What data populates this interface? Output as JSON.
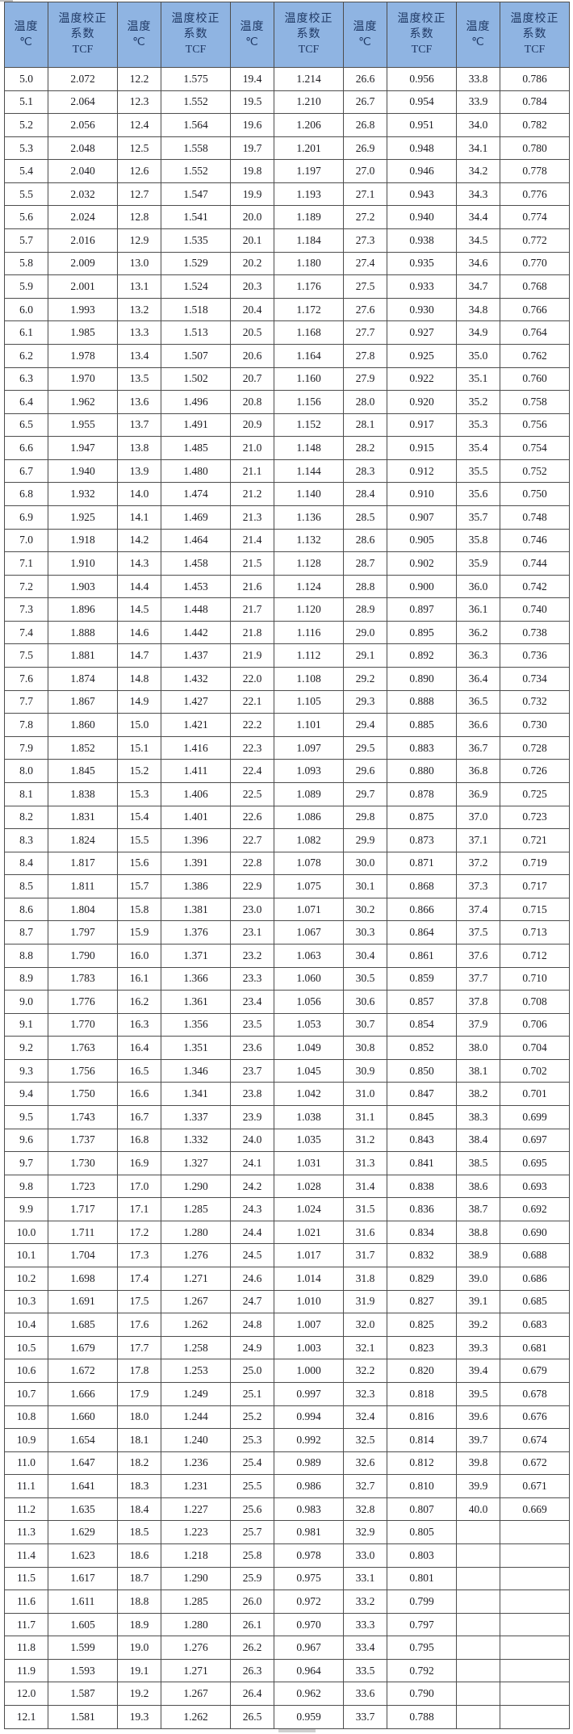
{
  "table": {
    "title_semantic": "temperature-correction-factor-table",
    "header": {
      "temp_label": "温度",
      "temp_unit": "℃",
      "tcf_line1": "温度校正",
      "tcf_line2": "系数",
      "tcf_line3": "TCF",
      "pairs": 5
    },
    "colors": {
      "header_bg": "#8FB4E2",
      "header_text": "#1F3864",
      "body_text": "#1b1b20",
      "border": "#4d4d4d",
      "row_bg": "#ffffff"
    },
    "rows": [
      [
        "5.0",
        "2.072",
        "12.2",
        "1.575",
        "19.4",
        "1.214",
        "26.6",
        "0.956",
        "33.8",
        "0.786"
      ],
      [
        "5.1",
        "2.064",
        "12.3",
        "1.552",
        "19.5",
        "1.210",
        "26.7",
        "0.954",
        "33.9",
        "0.784"
      ],
      [
        "5.2",
        "2.056",
        "12.4",
        "1.564",
        "19.6",
        "1.206",
        "26.8",
        "0.951",
        "34.0",
        "0.782"
      ],
      [
        "5.3",
        "2.048",
        "12.5",
        "1.558",
        "19.7",
        "1.201",
        "26.9",
        "0.948",
        "34.1",
        "0.780"
      ],
      [
        "5.4",
        "2.040",
        "12.6",
        "1.552",
        "19.8",
        "1.197",
        "27.0",
        "0.946",
        "34.2",
        "0.778"
      ],
      [
        "5.5",
        "2.032",
        "12.7",
        "1.547",
        "19.9",
        "1.193",
        "27.1",
        "0.943",
        "34.3",
        "0.776"
      ],
      [
        "5.6",
        "2.024",
        "12.8",
        "1.541",
        "20.0",
        "1.189",
        "27.2",
        "0.940",
        "34.4",
        "0.774"
      ],
      [
        "5.7",
        "2.016",
        "12.9",
        "1.535",
        "20.1",
        "1.184",
        "27.3",
        "0.938",
        "34.5",
        "0.772"
      ],
      [
        "5.8",
        "2.009",
        "13.0",
        "1.529",
        "20.2",
        "1.180",
        "27.4",
        "0.935",
        "34.6",
        "0.770"
      ],
      [
        "5.9",
        "2.001",
        "13.1",
        "1.524",
        "20.3",
        "1.176",
        "27.5",
        "0.933",
        "34.7",
        "0.768"
      ],
      [
        "6.0",
        "1.993",
        "13.2",
        "1.518",
        "20.4",
        "1.172",
        "27.6",
        "0.930",
        "34.8",
        "0.766"
      ],
      [
        "6.1",
        "1.985",
        "13.3",
        "1.513",
        "20.5",
        "1.168",
        "27.7",
        "0.927",
        "34.9",
        "0.764"
      ],
      [
        "6.2",
        "1.978",
        "13.4",
        "1.507",
        "20.6",
        "1.164",
        "27.8",
        "0.925",
        "35.0",
        "0.762"
      ],
      [
        "6.3",
        "1.970",
        "13.5",
        "1.502",
        "20.7",
        "1.160",
        "27.9",
        "0.922",
        "35.1",
        "0.760"
      ],
      [
        "6.4",
        "1.962",
        "13.6",
        "1.496",
        "20.8",
        "1.156",
        "28.0",
        "0.920",
        "35.2",
        "0.758"
      ],
      [
        "6.5",
        "1.955",
        "13.7",
        "1.491",
        "20.9",
        "1.152",
        "28.1",
        "0.917",
        "35.3",
        "0.756"
      ],
      [
        "6.6",
        "1.947",
        "13.8",
        "1.485",
        "21.0",
        "1.148",
        "28.2",
        "0.915",
        "35.4",
        "0.754"
      ],
      [
        "6.7",
        "1.940",
        "13.9",
        "1.480",
        "21.1",
        "1.144",
        "28.3",
        "0.912",
        "35.5",
        "0.752"
      ],
      [
        "6.8",
        "1.932",
        "14.0",
        "1.474",
        "21.2",
        "1.140",
        "28.4",
        "0.910",
        "35.6",
        "0.750"
      ],
      [
        "6.9",
        "1.925",
        "14.1",
        "1.469",
        "21.3",
        "1.136",
        "28.5",
        "0.907",
        "35.7",
        "0.748"
      ],
      [
        "7.0",
        "1.918",
        "14.2",
        "1.464",
        "21.4",
        "1.132",
        "28.6",
        "0.905",
        "35.8",
        "0.746"
      ],
      [
        "7.1",
        "1.910",
        "14.3",
        "1.458",
        "21.5",
        "1.128",
        "28.7",
        "0.902",
        "35.9",
        "0.744"
      ],
      [
        "7.2",
        "1.903",
        "14.4",
        "1.453",
        "21.6",
        "1.124",
        "28.8",
        "0.900",
        "36.0",
        "0.742"
      ],
      [
        "7.3",
        "1.896",
        "14.5",
        "1.448",
        "21.7",
        "1.120",
        "28.9",
        "0.897",
        "36.1",
        "0.740"
      ],
      [
        "7.4",
        "1.888",
        "14.6",
        "1.442",
        "21.8",
        "1.116",
        "29.0",
        "0.895",
        "36.2",
        "0.738"
      ],
      [
        "7.5",
        "1.881",
        "14.7",
        "1.437",
        "21.9",
        "1.112",
        "29.1",
        "0.892",
        "36.3",
        "0.736"
      ],
      [
        "7.6",
        "1.874",
        "14.8",
        "1.432",
        "22.0",
        "1.108",
        "29.2",
        "0.890",
        "36.4",
        "0.734"
      ],
      [
        "7.7",
        "1.867",
        "14.9",
        "1.427",
        "22.1",
        "1.105",
        "29.3",
        "0.888",
        "36.5",
        "0.732"
      ],
      [
        "7.8",
        "1.860",
        "15.0",
        "1.421",
        "22.2",
        "1.101",
        "29.4",
        "0.885",
        "36.6",
        "0.730"
      ],
      [
        "7.9",
        "1.852",
        "15.1",
        "1.416",
        "22.3",
        "1.097",
        "29.5",
        "0.883",
        "36.7",
        "0.728"
      ],
      [
        "8.0",
        "1.845",
        "15.2",
        "1.411",
        "22.4",
        "1.093",
        "29.6",
        "0.880",
        "36.8",
        "0.726"
      ],
      [
        "8.1",
        "1.838",
        "15.3",
        "1.406",
        "22.5",
        "1.089",
        "29.7",
        "0.878",
        "36.9",
        "0.725"
      ],
      [
        "8.2",
        "1.831",
        "15.4",
        "1.401",
        "22.6",
        "1.086",
        "29.8",
        "0.875",
        "37.0",
        "0.723"
      ],
      [
        "8.3",
        "1.824",
        "15.5",
        "1.396",
        "22.7",
        "1.082",
        "29.9",
        "0.873",
        "37.1",
        "0.721"
      ],
      [
        "8.4",
        "1.817",
        "15.6",
        "1.391",
        "22.8",
        "1.078",
        "30.0",
        "0.871",
        "37.2",
        "0.719"
      ],
      [
        "8.5",
        "1.811",
        "15.7",
        "1.386",
        "22.9",
        "1.075",
        "30.1",
        "0.868",
        "37.3",
        "0.717"
      ],
      [
        "8.6",
        "1.804",
        "15.8",
        "1.381",
        "23.0",
        "1.071",
        "30.2",
        "0.866",
        "37.4",
        "0.715"
      ],
      [
        "8.7",
        "1.797",
        "15.9",
        "1.376",
        "23.1",
        "1.067",
        "30.3",
        "0.864",
        "37.5",
        "0.713"
      ],
      [
        "8.8",
        "1.790",
        "16.0",
        "1.371",
        "23.2",
        "1.063",
        "30.4",
        "0.861",
        "37.6",
        "0.712"
      ],
      [
        "8.9",
        "1.783",
        "16.1",
        "1.366",
        "23.3",
        "1.060",
        "30.5",
        "0.859",
        "37.7",
        "0.710"
      ],
      [
        "9.0",
        "1.776",
        "16.2",
        "1.361",
        "23.4",
        "1.056",
        "30.6",
        "0.857",
        "37.8",
        "0.708"
      ],
      [
        "9.1",
        "1.770",
        "16.3",
        "1.356",
        "23.5",
        "1.053",
        "30.7",
        "0.854",
        "37.9",
        "0.706"
      ],
      [
        "9.2",
        "1.763",
        "16.4",
        "1.351",
        "23.6",
        "1.049",
        "30.8",
        "0.852",
        "38.0",
        "0.704"
      ],
      [
        "9.3",
        "1.756",
        "16.5",
        "1.346",
        "23.7",
        "1.045",
        "30.9",
        "0.850",
        "38.1",
        "0.702"
      ],
      [
        "9.4",
        "1.750",
        "16.6",
        "1.341",
        "23.8",
        "1.042",
        "31.0",
        "0.847",
        "38.2",
        "0.701"
      ],
      [
        "9.5",
        "1.743",
        "16.7",
        "1.337",
        "23.9",
        "1.038",
        "31.1",
        "0.845",
        "38.3",
        "0.699"
      ],
      [
        "9.6",
        "1.737",
        "16.8",
        "1.332",
        "24.0",
        "1.035",
        "31.2",
        "0.843",
        "38.4",
        "0.697"
      ],
      [
        "9.7",
        "1.730",
        "16.9",
        "1.327",
        "24.1",
        "1.031",
        "31.3",
        "0.841",
        "38.5",
        "0.695"
      ],
      [
        "9.8",
        "1.723",
        "17.0",
        "1.290",
        "24.2",
        "1.028",
        "31.4",
        "0.838",
        "38.6",
        "0.693"
      ],
      [
        "9.9",
        "1.717",
        "17.1",
        "1.285",
        "24.3",
        "1.024",
        "31.5",
        "0.836",
        "38.7",
        "0.692"
      ],
      [
        "10.0",
        "1.711",
        "17.2",
        "1.280",
        "24.4",
        "1.021",
        "31.6",
        "0.834",
        "38.8",
        "0.690"
      ],
      [
        "10.1",
        "1.704",
        "17.3",
        "1.276",
        "24.5",
        "1.017",
        "31.7",
        "0.832",
        "38.9",
        "0.688"
      ],
      [
        "10.2",
        "1.698",
        "17.4",
        "1.271",
        "24.6",
        "1.014",
        "31.8",
        "0.829",
        "39.0",
        "0.686"
      ],
      [
        "10.3",
        "1.691",
        "17.5",
        "1.267",
        "24.7",
        "1.010",
        "31.9",
        "0.827",
        "39.1",
        "0.685"
      ],
      [
        "10.4",
        "1.685",
        "17.6",
        "1.262",
        "24.8",
        "1.007",
        "32.0",
        "0.825",
        "39.2",
        "0.683"
      ],
      [
        "10.5",
        "1.679",
        "17.7",
        "1.258",
        "24.9",
        "1.003",
        "32.1",
        "0.823",
        "39.3",
        "0.681"
      ],
      [
        "10.6",
        "1.672",
        "17.8",
        "1.253",
        "25.0",
        "1.000",
        "32.2",
        "0.820",
        "39.4",
        "0.679"
      ],
      [
        "10.7",
        "1.666",
        "17.9",
        "1.249",
        "25.1",
        "0.997",
        "32.3",
        "0.818",
        "39.5",
        "0.678"
      ],
      [
        "10.8",
        "1.660",
        "18.0",
        "1.244",
        "25.2",
        "0.994",
        "32.4",
        "0.816",
        "39.6",
        "0.676"
      ],
      [
        "10.9",
        "1.654",
        "18.1",
        "1.240",
        "25.3",
        "0.992",
        "32.5",
        "0.814",
        "39.7",
        "0.674"
      ],
      [
        "11.0",
        "1.647",
        "18.2",
        "1.236",
        "25.4",
        "0.989",
        "32.6",
        "0.812",
        "39.8",
        "0.672"
      ],
      [
        "11.1",
        "1.641",
        "18.3",
        "1.231",
        "25.5",
        "0.986",
        "32.7",
        "0.810",
        "39.9",
        "0.671"
      ],
      [
        "11.2",
        "1.635",
        "18.4",
        "1.227",
        "25.6",
        "0.983",
        "32.8",
        "0.807",
        "40.0",
        "0.669"
      ],
      [
        "11.3",
        "1.629",
        "18.5",
        "1.223",
        "25.7",
        "0.981",
        "32.9",
        "0.805",
        "",
        ""
      ],
      [
        "11.4",
        "1.623",
        "18.6",
        "1.218",
        "25.8",
        "0.978",
        "33.0",
        "0.803",
        "",
        ""
      ],
      [
        "11.5",
        "1.617",
        "18.7",
        "1.290",
        "25.9",
        "0.975",
        "33.1",
        "0.801",
        "",
        ""
      ],
      [
        "11.6",
        "1.611",
        "18.8",
        "1.285",
        "26.0",
        "0.972",
        "33.2",
        "0.799",
        "",
        ""
      ],
      [
        "11.7",
        "1.605",
        "18.9",
        "1.280",
        "26.1",
        "0.970",
        "33.3",
        "0.797",
        "",
        ""
      ],
      [
        "11.8",
        "1.599",
        "19.0",
        "1.276",
        "26.2",
        "0.967",
        "33.4",
        "0.795",
        "",
        ""
      ],
      [
        "11.9",
        "1.593",
        "19.1",
        "1.271",
        "26.3",
        "0.964",
        "33.5",
        "0.792",
        "",
        ""
      ],
      [
        "12.0",
        "1.587",
        "19.2",
        "1.267",
        "26.4",
        "0.962",
        "33.6",
        "0.790",
        "",
        ""
      ],
      [
        "12.1",
        "1.581",
        "19.3",
        "1.262",
        "26.5",
        "0.959",
        "33.7",
        "0.788",
        "",
        ""
      ]
    ]
  }
}
